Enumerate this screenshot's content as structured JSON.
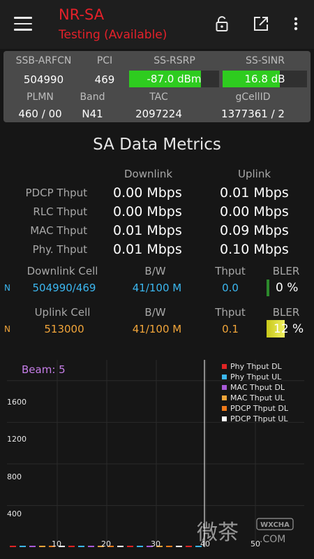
{
  "appbar": {
    "title": "NR-SA",
    "subtitle": "Testing (Available)"
  },
  "cell_info": {
    "labels": {
      "arfcn": "SSB-ARFCN",
      "pci": "PCI",
      "rsrp": "SS-RSRP",
      "sinr": "SS-SINR",
      "plmn": "PLMN",
      "band": "Band",
      "tac": "TAC",
      "gcell": "gCellID"
    },
    "values": {
      "arfcn": "504990",
      "pci": "469",
      "rsrp": "-87.0 dBm",
      "sinr": "16.8 dB",
      "plmn": "460 / 00",
      "band": "N41",
      "tac": "2097224",
      "gcell": "1377361 / 2"
    },
    "rsrp_fill": 0.8,
    "sinr_fill": 0.68,
    "bar_color": "#2ecc1f"
  },
  "metrics": {
    "title": "SA Data Metrics",
    "downlink_header": "Downlink",
    "uplink_header": "Uplink",
    "rows": [
      {
        "label": "PDCP Thput",
        "dl": "0.00 Mbps",
        "ul": "0.01 Mbps"
      },
      {
        "label": "RLC Thput",
        "dl": "0.00 Mbps",
        "ul": "0.00 Mbps"
      },
      {
        "label": "MAC Thput",
        "dl": "0.01 Mbps",
        "ul": "0.09 Mbps"
      },
      {
        "label": "Phy. Thput",
        "dl": "0.01 Mbps",
        "ul": "0.10 Mbps"
      }
    ]
  },
  "cells": {
    "headers": {
      "bw": "B/W",
      "thput": "Thput",
      "bler": "BLER"
    },
    "downlink": {
      "header": "Downlink Cell",
      "n": "N",
      "cell": "504990/469",
      "bw": "41/100 M",
      "thput": "0.0",
      "bler": "0 %",
      "bler_fill": 0.0,
      "color": "#3bb7f0"
    },
    "uplink": {
      "header": "Uplink Cell",
      "n": "N",
      "cell": "513000",
      "bw": "41/100 M",
      "thput": "0.1",
      "bler": "12 %",
      "bler_fill": 0.12,
      "color": "#f1a53a"
    }
  },
  "chart_data": {
    "type": "bar",
    "beam_label": "Beam: 5",
    "y_ticks": [
      "400",
      "800",
      "1200",
      "1600"
    ],
    "x_ticks": [
      "10",
      "20",
      "30",
      "40",
      "50"
    ],
    "ylim": [
      0,
      1800
    ],
    "xlim": [
      0,
      60
    ],
    "cursor_x": 40,
    "series": [
      {
        "name": "Phy Thput DL",
        "color": "#e02424",
        "values": []
      },
      {
        "name": "Phy Thput UL",
        "color": "#3bb7f0",
        "values": []
      },
      {
        "name": "MAC Thput DL",
        "color": "#a85ad8",
        "values": []
      },
      {
        "name": "MAC Thput UL",
        "color": "#f1a53a",
        "values": []
      },
      {
        "name": "PDCP Thput DL",
        "color": "#f07a1a",
        "values": []
      },
      {
        "name": "PDCP Thput UL",
        "color": "#ffffff",
        "values": []
      }
    ]
  },
  "watermark": {
    "logo_text": "微茶",
    "tag": "WXCHA",
    "domain": ".COM"
  }
}
